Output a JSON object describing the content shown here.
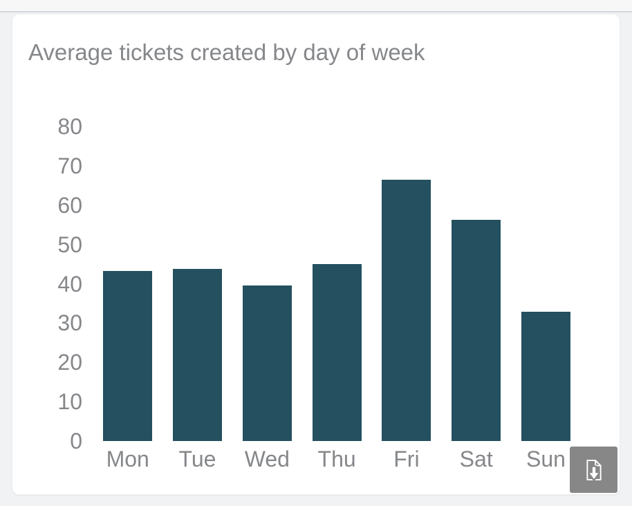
{
  "card": {
    "title": "Average tickets created by day of week"
  },
  "chart_data": {
    "type": "bar",
    "title": "Average tickets created by day of week",
    "categories": [
      "Mon",
      "Tue",
      "Wed",
      "Thu",
      "Fri",
      "Sat",
      "Sun"
    ],
    "values": [
      43.3,
      43.7,
      39.6,
      45,
      66.5,
      56.3,
      32.8
    ],
    "xlabel": "",
    "ylabel": "",
    "ylim": [
      0,
      80
    ],
    "ytick_step": 10,
    "grid": false,
    "legend": false,
    "bar_color": "#24505f",
    "axis_label_color": "#85878a"
  },
  "toolbar": {
    "download_icon": "file-download-icon"
  }
}
